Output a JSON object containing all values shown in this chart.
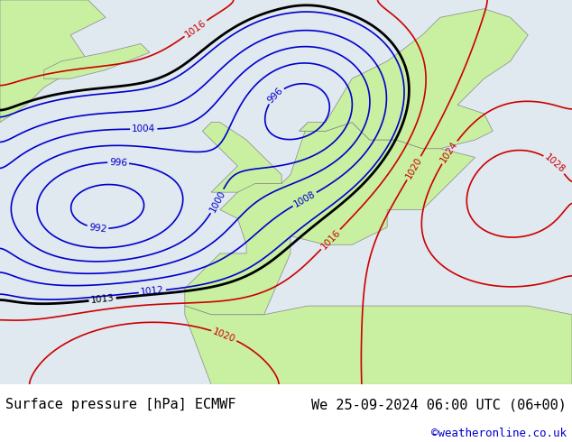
{
  "title_left": "Surface pressure [hPa] ECMWF",
  "title_right": "We 25-09-2024 06:00 UTC (06+00)",
  "watermark": "©weatheronline.co.uk",
  "watermark_color": "#0000cc",
  "bg_color": "#d0d0d0",
  "land_color_light": "#c8f0a0",
  "land_color_mid": "#b8e888",
  "ocean_color": "#e0e8f0",
  "bottom_bar_color": "#e0e0e0",
  "bottom_bar_height": 0.13,
  "fig_width": 6.34,
  "fig_height": 4.9,
  "dpi": 100,
  "title_fontsize": 11,
  "watermark_fontsize": 9,
  "isobar_blue_color": "#0000cc",
  "isobar_red_color": "#cc0000",
  "isobar_black_color": "#000000",
  "label_fontsize": 7.5
}
